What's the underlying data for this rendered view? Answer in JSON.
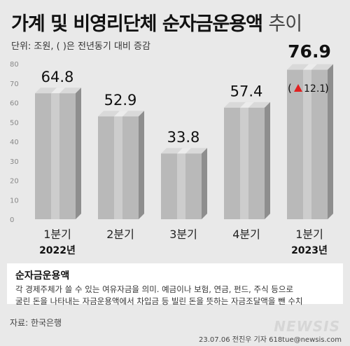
{
  "title_main": "가계 및 비영리단체 순자금운용액",
  "title_light": "추이",
  "unit": "단위: 조원, ( )은 전년동기 대비 증감",
  "chart_data": {
    "type": "bar",
    "categories": [
      "1분기",
      "2분기",
      "3분기",
      "4분기",
      "1분기"
    ],
    "year_labels": [
      "2022년",
      "",
      "",
      "",
      "2023년"
    ],
    "values": [
      64.8,
      52.9,
      33.8,
      57.4,
      76.9
    ],
    "value_labels": [
      "64.8",
      "52.9",
      "33.8",
      "57.4",
      "76.9"
    ],
    "change_label": "12.1",
    "change_index": 4,
    "yticks": [
      "0",
      "10",
      "20",
      "30",
      "40",
      "50",
      "60",
      "70",
      "80"
    ],
    "ylim": [
      0,
      80
    ],
    "colors": {
      "front": "#b9b9b9",
      "top": "#d9d9d9",
      "side": "#8e8e8e",
      "ribbon_front": "#cdcdcd",
      "ribbon_top": "#ececec",
      "triangle": "#e02020"
    }
  },
  "definition": {
    "title": "순자금운용액",
    "line1": "각 경제주체가 쓸 수 있는 여유자금을 의미. 예금이나 보험, 연금, 펀드, 주식 등으로",
    "line2": "굴린 돈을 나타내는 자금운용액에서 차입금 등 빌린 돈을 뜻하는 자금조달액을 뺀 수치"
  },
  "source": "자료: 한국은행",
  "logo": "NEWSIS",
  "credit": "23.07.06 전진우 기자 618tue@newsis.com"
}
